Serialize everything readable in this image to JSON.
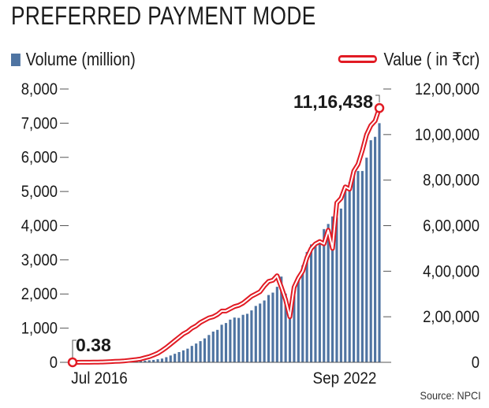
{
  "title": "PREFERRED PAYMENT MODE",
  "source": "Source: NPCI",
  "colors": {
    "bar": "#4f74a2",
    "line": "#e11b24",
    "text": "#1a1a1a"
  },
  "chart_data": {
    "type": "bar+line",
    "title": "PREFERRED PAYMENT MODE",
    "x_tick_labels": [
      "Jul 2016",
      "Sep 2022"
    ],
    "left_axis": {
      "label": "",
      "ticks": [
        "0",
        "1,000",
        "2,000",
        "3,000",
        "4,000",
        "5,000",
        "6,000",
        "7,000",
        "8,000"
      ],
      "range": [
        0,
        8000
      ]
    },
    "right_axis": {
      "label": "",
      "ticks": [
        "0",
        "2,00,000",
        "4,00,000",
        "6,00,000",
        "8,00,000",
        "10,00,000",
        "12,00,000"
      ],
      "range": [
        0,
        1200000
      ]
    },
    "series": [
      {
        "name": "Volume (million)",
        "kind": "bar",
        "axis": "left",
        "values": [
          0.38,
          0.5,
          0.8,
          1,
          2,
          2,
          3,
          4,
          5,
          8,
          10,
          12,
          15,
          20,
          25,
          30,
          40,
          50,
          60,
          70,
          90,
          110,
          150,
          200,
          250,
          300,
          350,
          400,
          480,
          550,
          620,
          700,
          800,
          900,
          950,
          1100,
          1150,
          1250,
          1310,
          1300,
          1390,
          1420,
          1520,
          1650,
          1720,
          1810,
          1970,
          2040,
          2210,
          2510,
          2010,
          1420,
          1960,
          2490,
          2840,
          3230,
          3450,
          3470,
          3570,
          3900,
          4050,
          4270,
          4240,
          4500,
          5100,
          5270,
          5500,
          5600,
          5600,
          5990,
          6500,
          6600,
          7000
        ],
        "annotations": [
          {
            "label": "0.38"
          }
        ]
      },
      {
        "name": "Value ( in ₹cr)",
        "kind": "line",
        "axis": "right",
        "values": [
          100,
          150,
          200,
          300,
          500,
          700,
          1000,
          1500,
          2000,
          3000,
          4000,
          5000,
          6000,
          8000,
          10000,
          12000,
          15000,
          20000,
          25000,
          32000,
          40000,
          52000,
          65000,
          80000,
          95000,
          110000,
          125000,
          135000,
          150000,
          160000,
          175000,
          185000,
          195000,
          200000,
          210000,
          225000,
          225000,
          235000,
          245000,
          250000,
          260000,
          275000,
          290000,
          300000,
          310000,
          335000,
          355000,
          360000,
          380000,
          330000,
          275000,
          200000,
          330000,
          370000,
          400000,
          460000,
          500000,
          520000,
          530000,
          520000,
          580000,
          500000,
          700000,
          720000,
          770000,
          760000,
          840000,
          870000,
          930000,
          1000000,
          1040000,
          1060000,
          1116438
        ],
        "annotations": [
          {
            "label": "11,16,438"
          }
        ]
      }
    ],
    "legend": [
      "Volume (million)",
      "Value ( in ₹cr)"
    ],
    "legend_position": "top",
    "grid": false
  }
}
